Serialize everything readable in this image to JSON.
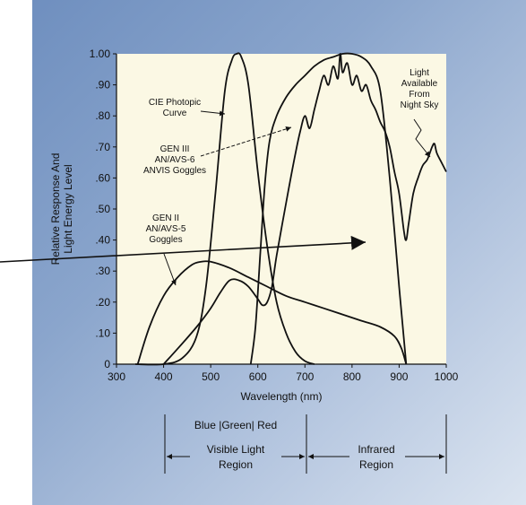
{
  "chart_data": {
    "type": "line",
    "xlabel": "Wavelength (nm)",
    "ylabel_line1": "Relative Response And",
    "ylabel_line2": "Light Energy Level",
    "xlim": [
      300,
      1000
    ],
    "ylim": [
      0,
      1.0
    ],
    "x_ticks": [
      300,
      400,
      500,
      600,
      700,
      800,
      900,
      1000
    ],
    "x_tick_labels": [
      "300",
      "400",
      "500",
      "600",
      "700",
      "800",
      "900",
      "1000"
    ],
    "y_ticks": [
      0,
      0.1,
      0.2,
      0.3,
      0.4,
      0.5,
      0.6,
      0.7,
      0.8,
      0.9,
      1.0
    ],
    "y_tick_labels": [
      "0",
      ".10",
      ".20",
      ".30",
      ".40",
      ".50",
      ".60",
      ".70",
      ".80",
      ".90",
      "1.00"
    ],
    "grid": false,
    "series": [
      {
        "name": "CIE Photopic Curve",
        "x": [
          340,
          400,
          440,
          470,
          490,
          510,
          530,
          545,
          555,
          565,
          580,
          600,
          620,
          640,
          660,
          680,
          700,
          720
        ],
        "y": [
          0.0,
          0.0,
          0.02,
          0.09,
          0.25,
          0.55,
          0.88,
          0.98,
          1.0,
          0.99,
          0.9,
          0.62,
          0.38,
          0.2,
          0.1,
          0.04,
          0.01,
          0.0
        ]
      },
      {
        "name": "GEN III AN/AVS-6 ANVIS Goggles",
        "x": [
          585,
          595,
          605,
          615,
          625,
          640,
          660,
          680,
          700,
          720,
          740,
          760,
          780,
          800,
          820,
          840,
          860,
          880,
          900,
          915
        ],
        "y": [
          0.0,
          0.12,
          0.35,
          0.58,
          0.72,
          0.8,
          0.86,
          0.9,
          0.93,
          0.96,
          0.98,
          0.99,
          1.0,
          1.0,
          0.99,
          0.96,
          0.88,
          0.6,
          0.25,
          0.0
        ]
      },
      {
        "name": "GEN II AN/AVS-5 Goggles",
        "x": [
          345,
          370,
          400,
          430,
          460,
          480,
          500,
          540,
          580,
          620,
          660,
          700,
          740,
          780,
          820,
          860,
          890,
          905,
          915
        ],
        "y": [
          0.0,
          0.12,
          0.22,
          0.28,
          0.32,
          0.33,
          0.33,
          0.31,
          0.28,
          0.25,
          0.22,
          0.2,
          0.18,
          0.16,
          0.14,
          0.12,
          0.09,
          0.05,
          0.0
        ]
      },
      {
        "name": "Light Available From Night Sky",
        "x": [
          400,
          430,
          470,
          500,
          520,
          540,
          560,
          580,
          600,
          610,
          620,
          630,
          640,
          660,
          680,
          690,
          700,
          710,
          720,
          730,
          740,
          750,
          760,
          770,
          775,
          780,
          790,
          800,
          810,
          820,
          830,
          840,
          850,
          860,
          870,
          880,
          890,
          900,
          910,
          915,
          920,
          930,
          940,
          950,
          960,
          970,
          975,
          980,
          990,
          1000
        ],
        "y": [
          0.0,
          0.05,
          0.12,
          0.18,
          0.23,
          0.27,
          0.27,
          0.25,
          0.21,
          0.19,
          0.2,
          0.25,
          0.35,
          0.52,
          0.68,
          0.75,
          0.8,
          0.76,
          0.82,
          0.88,
          0.93,
          0.9,
          0.96,
          0.92,
          1.0,
          0.94,
          0.97,
          0.9,
          0.93,
          0.88,
          0.9,
          0.85,
          0.82,
          0.78,
          0.75,
          0.7,
          0.62,
          0.55,
          0.43,
          0.4,
          0.45,
          0.55,
          0.6,
          0.64,
          0.66,
          0.7,
          0.71,
          0.68,
          0.65,
          0.62
        ]
      }
    ],
    "annotations": {
      "cie": [
        "CIE Photopic",
        "Curve"
      ],
      "gen3": [
        "GEN III",
        "AN/AVS-6",
        "ANVIS Goggles"
      ],
      "gen2": [
        "GEN II",
        "AN/AVS-5",
        "Goggles"
      ],
      "night": [
        "Light",
        "Available",
        "From",
        "Night Sky"
      ]
    },
    "regions": {
      "colors": "Blue |Green| Red",
      "visible": [
        "Visible Light",
        "Region"
      ],
      "infrared": [
        "Infrared",
        "Region"
      ]
    }
  }
}
